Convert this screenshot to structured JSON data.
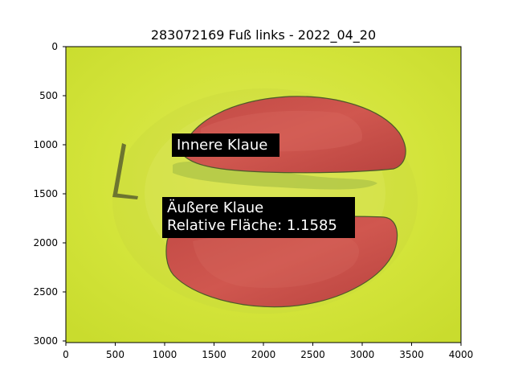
{
  "figure": {
    "title": "283072169 Fuß links - 2022_04_20"
  },
  "axes": {
    "x_ticks": [
      "0",
      "500",
      "1000",
      "1500",
      "2000",
      "2500",
      "3000",
      "3500",
      "4000"
    ],
    "y_ticks": [
      "0",
      "500",
      "1000",
      "1500",
      "2000",
      "2500",
      "3000"
    ]
  },
  "annotations": {
    "inner": "Innere Klaue",
    "outer_line1": "Äußere Klaue",
    "outer_line2": "Relative Fläche: 1.1585"
  },
  "colors": {
    "background_plate": "#d8e83a",
    "claw_mask": "#c8504a",
    "label_box": "#000000"
  }
}
